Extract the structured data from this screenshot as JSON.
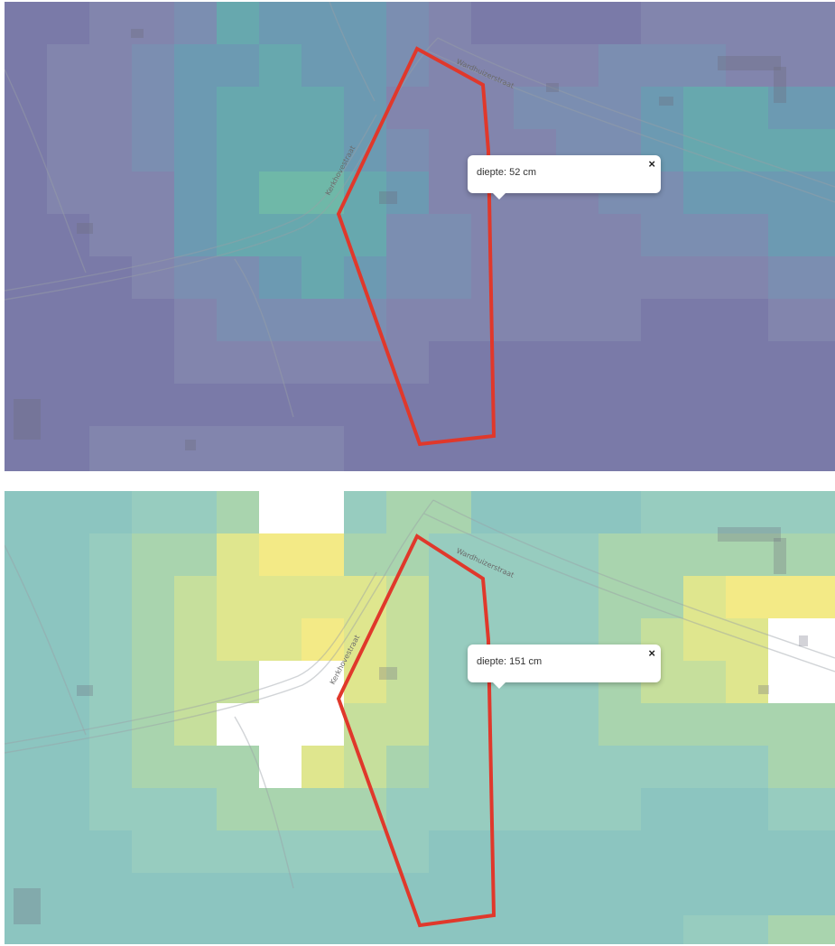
{
  "panels": [
    {
      "id": "top",
      "popup": {
        "text": "diepte: 52 cm",
        "close": "×"
      },
      "streets": [
        "Wardhuizerstraat",
        "Kerkhovestraat"
      ],
      "grid_palette": [
        "#7a7aa8",
        "#8285ad",
        "#7b8eb1",
        "#6c9ab2",
        "#67a8ae",
        "#6fb8a8",
        "#8fcf9c"
      ]
    },
    {
      "id": "bottom",
      "popup": {
        "text": "diepte: 151 cm",
        "close": "×"
      },
      "streets": [
        "Wardhuizerstraat",
        "Kerkhovestraat"
      ],
      "grid_palette": [
        "#8cc5c0",
        "#97ccbf",
        "#a9d4ae",
        "#c6df9c",
        "#dfe68e",
        "#f3ea86",
        "#ffffff"
      ]
    }
  ],
  "parcel_outline_color": "#e0382b"
}
